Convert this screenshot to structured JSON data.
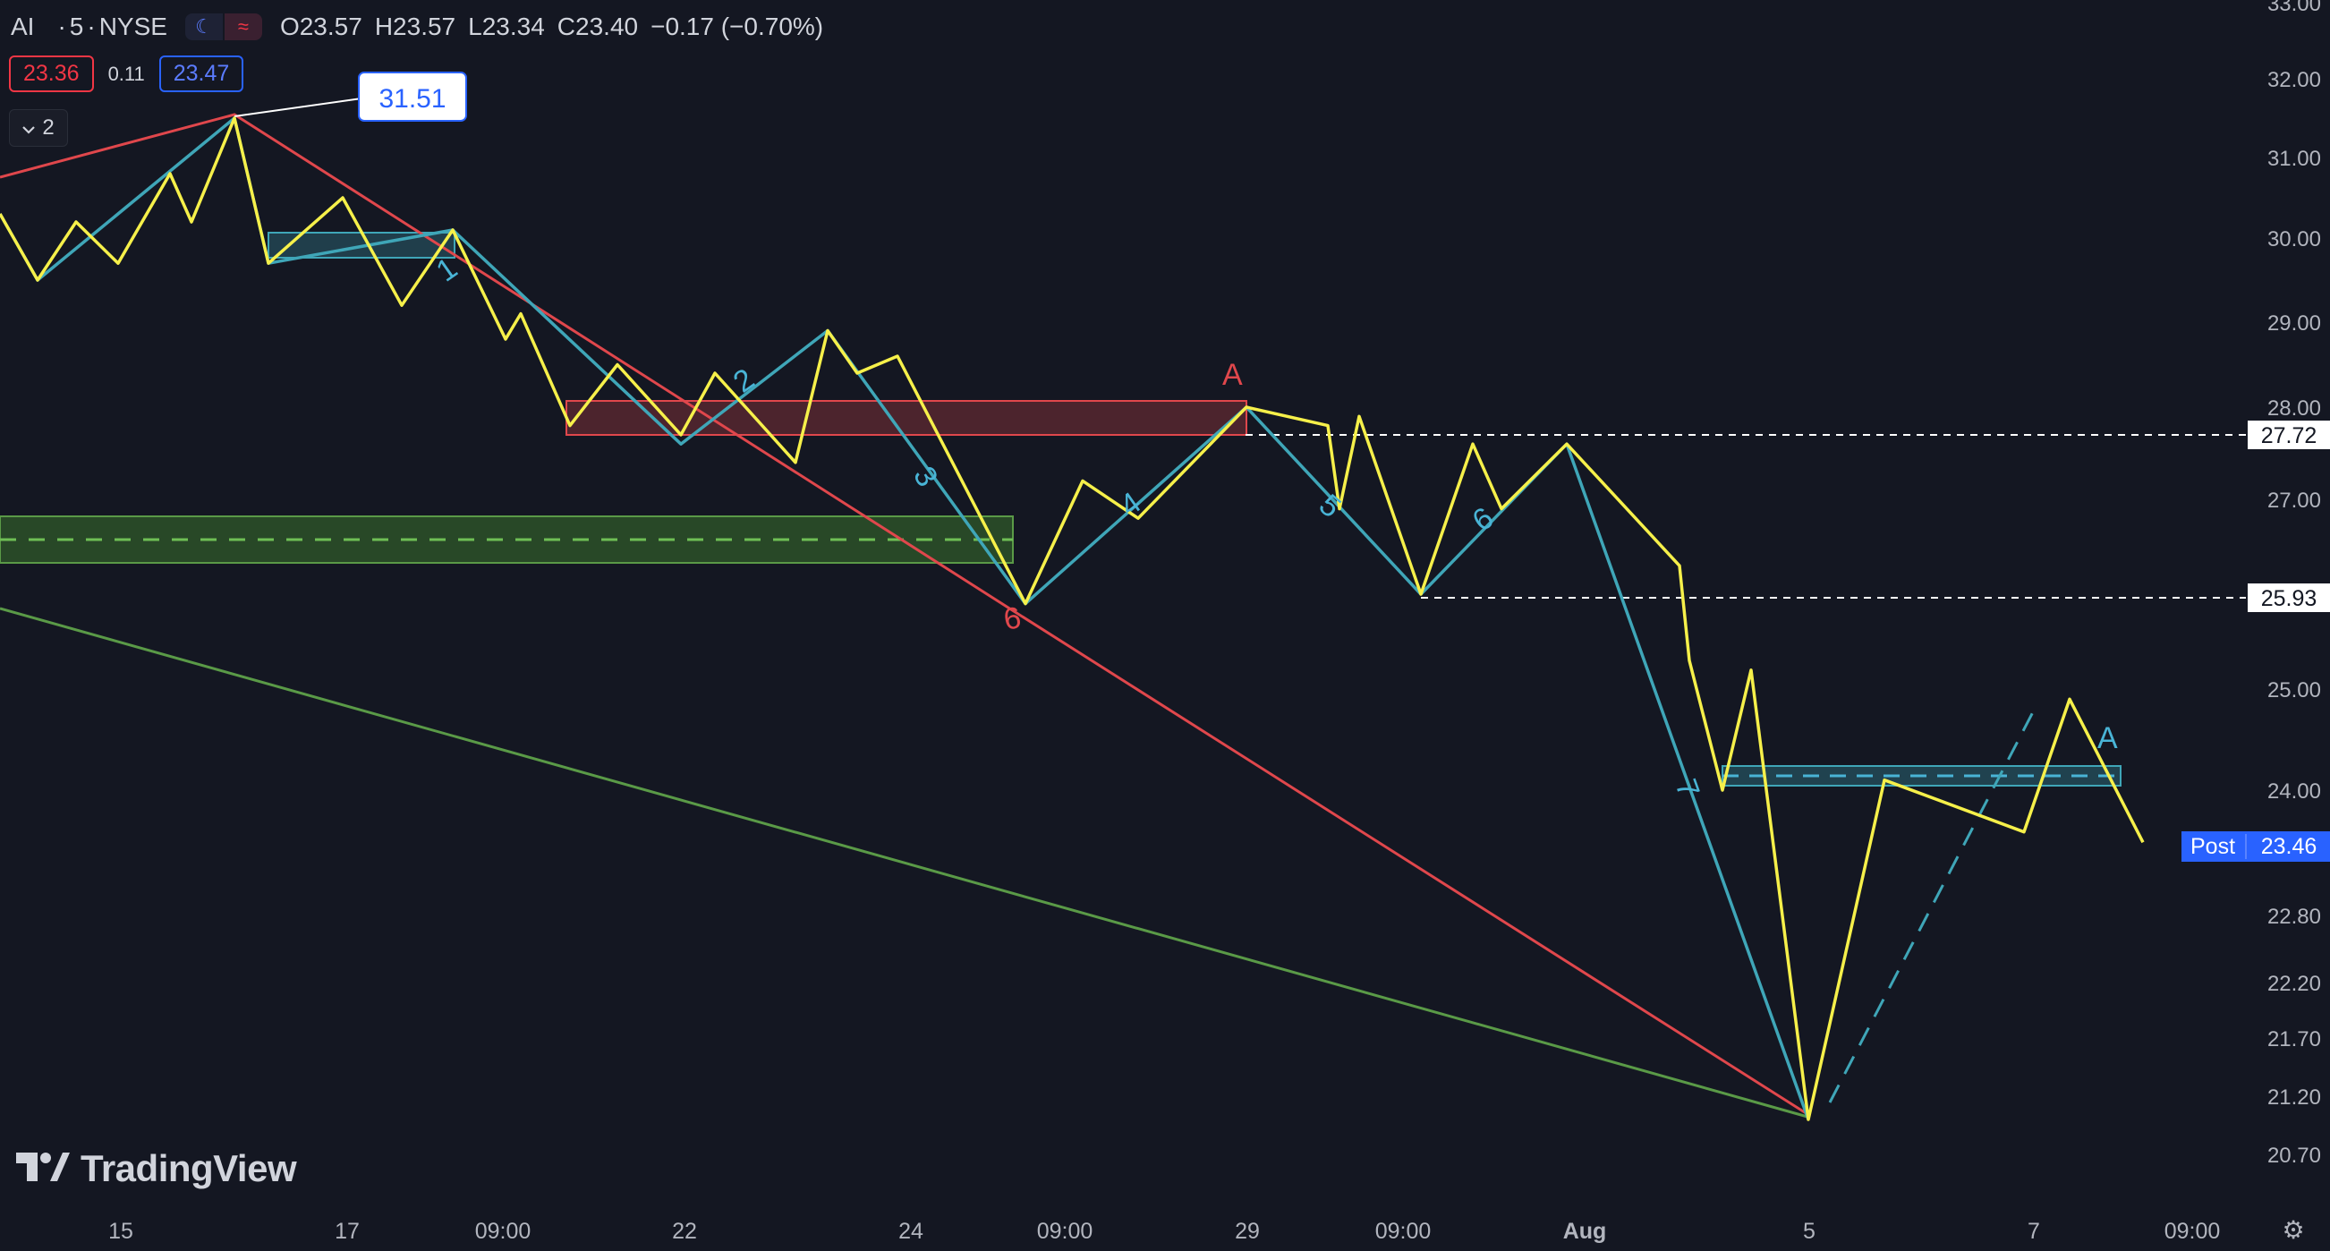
{
  "header": {
    "symbol": "AI",
    "interval": "5",
    "exchange": "NYSE",
    "ohlc": {
      "o_label": "O",
      "o": "23.57",
      "h_label": "H",
      "h": "23.57",
      "l_label": "L",
      "l": "23.34",
      "c_label": "C",
      "c": "23.40",
      "change": "−0.17 (−0.70%)"
    },
    "icons": [
      "moon-icon",
      "wave-icon"
    ]
  },
  "quote": {
    "bid": "23.36",
    "spread": "0.11",
    "ask": "23.47"
  },
  "indicators_toggle": {
    "count": "2",
    "icon": "chevron-down-icon"
  },
  "branding": {
    "name": "TradingView",
    "icon": "tradingview-logo-icon"
  },
  "settings_icon": "gear-icon",
  "colors": {
    "background": "#141722",
    "price_line": "#f6f04a",
    "wave_line": "#3fa6b8",
    "red": "#e0474c",
    "green": "#5a9a47",
    "cyan_label": "#49b4d6",
    "accent": "#2962ff"
  },
  "chart_data": {
    "type": "line",
    "y_axis": {
      "ticks": [
        "33.00",
        "32.00",
        "31.00",
        "30.00",
        "29.00",
        "28.00",
        "27.00",
        "25.00",
        "24.00",
        "22.80",
        "22.20",
        "21.70",
        "21.20",
        "20.70"
      ]
    },
    "x_axis": {
      "ticks": [
        "15",
        "17",
        "09:00",
        "22",
        "24",
        "09:00",
        "29",
        "09:00",
        "Aug",
        "5",
        "7",
        "09:00"
      ]
    },
    "series": [
      {
        "name": "price",
        "points": [
          [
            0,
            30.3
          ],
          [
            1,
            29.5
          ],
          [
            2,
            30.2
          ],
          [
            3,
            29.7
          ],
          [
            4,
            30.8
          ],
          [
            5,
            30.2
          ],
          [
            6,
            31.5
          ],
          [
            7,
            29.7
          ],
          [
            8,
            30.5
          ],
          [
            9,
            29.2
          ],
          [
            10,
            30.1
          ],
          [
            11,
            28.8
          ],
          [
            12,
            29.1
          ],
          [
            13,
            27.8
          ],
          [
            14,
            28.5
          ],
          [
            15,
            27.7
          ],
          [
            16,
            28.4
          ],
          [
            17,
            27.4
          ],
          [
            18,
            28.9
          ],
          [
            19,
            28.4
          ],
          [
            20,
            28.6
          ],
          [
            21,
            25.9
          ],
          [
            22,
            27.2
          ],
          [
            23,
            26.8
          ],
          [
            24,
            28.0
          ],
          [
            25,
            27.8
          ],
          [
            26,
            26.9
          ],
          [
            27,
            27.9
          ],
          [
            28,
            26.0
          ],
          [
            29,
            27.6
          ],
          [
            30,
            26.9
          ],
          [
            31,
            27.6
          ],
          [
            32,
            26.3
          ],
          [
            33,
            25.3
          ],
          [
            34,
            24.0
          ],
          [
            35,
            25.2
          ],
          [
            36,
            21.0
          ],
          [
            37,
            24.1
          ],
          [
            38,
            23.6
          ],
          [
            39,
            24.9
          ],
          [
            40,
            23.5
          ]
        ]
      },
      {
        "name": "wave",
        "points": [
          [
            0,
            30.3
          ],
          [
            1,
            29.5
          ],
          [
            6,
            31.5
          ],
          [
            7,
            29.7
          ],
          [
            10,
            30.1
          ],
          [
            15,
            27.6
          ],
          [
            18,
            28.9
          ],
          [
            21,
            25.9
          ],
          [
            24,
            28.0
          ],
          [
            28,
            26.0
          ],
          [
            31,
            27.6
          ],
          [
            36,
            21.0
          ]
        ]
      }
    ],
    "levels": [
      {
        "label": "27.72",
        "value": 27.72,
        "style": "dotted"
      },
      {
        "label": "25.93",
        "value": 25.93,
        "style": "dotted"
      }
    ],
    "current_price": {
      "label": "Post",
      "value": "23.46"
    },
    "peak_callout": "31.51",
    "wave_labels": {
      "cyan": [
        "1",
        "2",
        "3",
        "4",
        "5",
        "6",
        "7",
        "A"
      ],
      "red": [
        "6",
        "A"
      ]
    },
    "zones": [
      {
        "color": "red",
        "range": [
          27.7,
          28.1
        ]
      },
      {
        "color": "green",
        "range": [
          26.3,
          26.7
        ]
      },
      {
        "color": "cyan",
        "range": [
          29.8,
          30.1
        ]
      },
      {
        "color": "cyan",
        "range": [
          24.0,
          24.2
        ]
      }
    ]
  }
}
